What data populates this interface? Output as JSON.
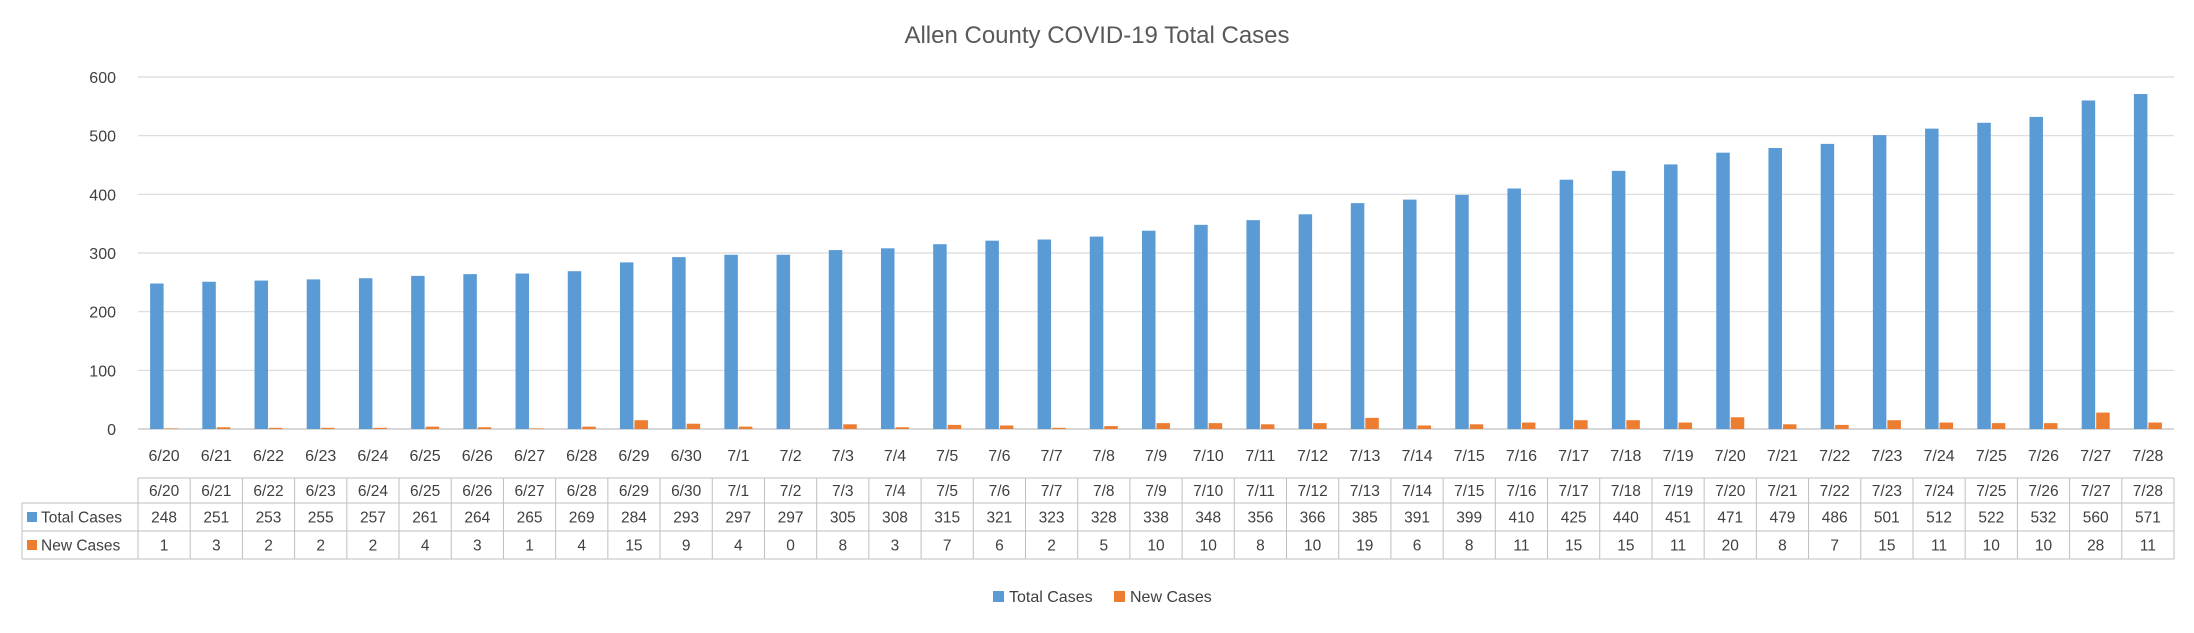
{
  "chart_data": {
    "type": "bar",
    "title": "Allen County COVID-19 Total Cases",
    "categories": [
      "6/20",
      "6/21",
      "6/22",
      "6/23",
      "6/24",
      "6/25",
      "6/26",
      "6/27",
      "6/28",
      "6/29",
      "6/30",
      "7/1",
      "7/2",
      "7/3",
      "7/4",
      "7/5",
      "7/6",
      "7/7",
      "7/8",
      "7/9",
      "7/10",
      "7/11",
      "7/12",
      "7/13",
      "7/14",
      "7/15",
      "7/16",
      "7/17",
      "7/18",
      "7/19",
      "7/20",
      "7/21",
      "7/22",
      "7/23",
      "7/24",
      "7/25",
      "7/26",
      "7/27",
      "7/28"
    ],
    "series": [
      {
        "name": "Total Cases",
        "color": "#5B9BD5",
        "values": [
          248,
          251,
          253,
          255,
          257,
          261,
          264,
          265,
          269,
          284,
          293,
          297,
          297,
          305,
          308,
          315,
          321,
          323,
          328,
          338,
          348,
          356,
          366,
          385,
          391,
          399,
          410,
          425,
          440,
          451,
          471,
          479,
          486,
          501,
          512,
          522,
          532,
          560,
          571
        ]
      },
      {
        "name": "New Cases",
        "color": "#ED7D31",
        "values": [
          1,
          3,
          2,
          2,
          2,
          4,
          3,
          1,
          4,
          15,
          9,
          4,
          0,
          8,
          3,
          7,
          6,
          2,
          5,
          10,
          10,
          8,
          10,
          19,
          6,
          8,
          11,
          15,
          15,
          11,
          20,
          8,
          7,
          15,
          11,
          10,
          10,
          28,
          11
        ]
      }
    ],
    "yticks": [
      0,
      100,
      200,
      300,
      400,
      500,
      600
    ],
    "ylim": [
      0,
      600
    ],
    "grid": true,
    "legend": "bottom",
    "data_table": true
  }
}
